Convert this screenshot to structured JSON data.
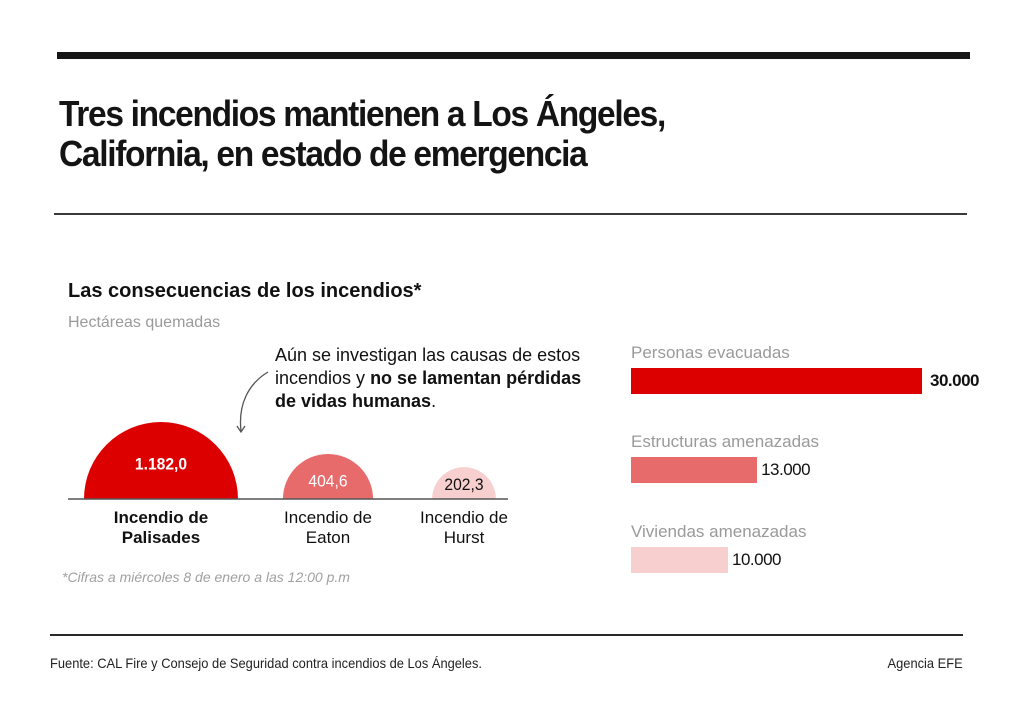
{
  "header": {
    "title_lines": [
      "Tres incendios mantienen a Los Ángeles,",
      "California, en estado de emergencia"
    ]
  },
  "section": {
    "title": "Las consecuencias de los incendios*",
    "subtitle": "Hectáreas quemadas"
  },
  "annotation": {
    "normal_1": "Aún se investigan las causas de estos incendios y ",
    "bold": "no se lamentan pérdidas de vidas humanas",
    "normal_2": "."
  },
  "footnote": "*Cifras a miércoles 8 de enero a las 12:00 p.m",
  "footer": {
    "source": "Fuente: CAL Fire y Consejo de Seguridad contra incendios de Los Ángeles.",
    "credit": "Agencia EFE"
  },
  "colors": {
    "strong_red": "#dc0000",
    "mid_red": "#e86b6b",
    "light_red": "#f7cfcf",
    "text_dark": "#111111",
    "text_muted": "#9a9a9a"
  },
  "chart_data": [
    {
      "type": "proportional-semicircle",
      "title": "Hectáreas quemadas",
      "categories": [
        "Incendio de Palisades",
        "Incendio de Eaton",
        "Incendio de Hurst"
      ],
      "label_lines": [
        [
          "Incendio de",
          "Palisades"
        ],
        [
          "Incendio de",
          "Eaton"
        ],
        [
          "Incendio de",
          "Hurst"
        ]
      ],
      "values": [
        1182.0,
        404.6,
        202.3
      ],
      "value_labels": [
        "1.182,0",
        "404,6",
        "202,3"
      ],
      "colors": [
        "#dc0000",
        "#e86b6b",
        "#f7cfcf"
      ],
      "label_colors": [
        "#ffffff",
        "#ffffff",
        "#111111"
      ],
      "emphasis": [
        true,
        false,
        false
      ]
    },
    {
      "type": "bar",
      "orientation": "horizontal",
      "categories": [
        "Personas evacuadas",
        "Estructuras amenazadas",
        "Viviendas amenazadas"
      ],
      "values": [
        30000,
        13000,
        10000
      ],
      "value_labels": [
        "30.000",
        "13.000",
        "10.000"
      ],
      "colors": [
        "#dc0000",
        "#e86b6b",
        "#f7cfcf"
      ],
      "emphasis": [
        true,
        false,
        false
      ],
      "xlim": [
        0,
        30000
      ]
    }
  ]
}
